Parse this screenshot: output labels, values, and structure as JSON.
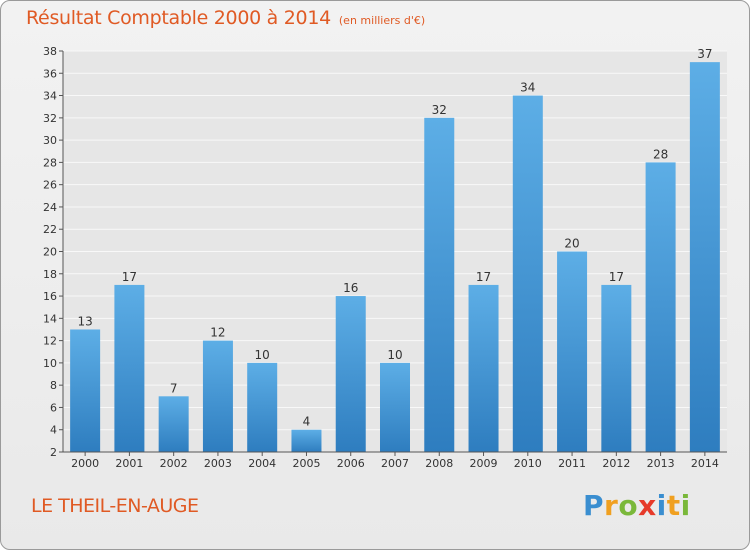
{
  "chart_data": {
    "type": "bar",
    "title": "Résultat Comptable 2000 à 2014",
    "subtitle": "(en milliers d'€)",
    "categories": [
      "2000",
      "2001",
      "2002",
      "2003",
      "2004",
      "2005",
      "2006",
      "2007",
      "2008",
      "2009",
      "2010",
      "2011",
      "2012",
      "2013",
      "2014"
    ],
    "values": [
      13,
      17,
      7,
      12,
      10,
      4,
      16,
      10,
      32,
      17,
      34,
      20,
      17,
      28,
      37
    ],
    "ylim": [
      2,
      38
    ],
    "yticks": [
      2,
      4,
      6,
      8,
      10,
      12,
      14,
      16,
      18,
      20,
      22,
      24,
      26,
      28,
      30,
      32,
      34,
      36,
      38
    ],
    "grid": true,
    "xlabel": "",
    "ylabel": ""
  },
  "commune": "LE THEIL-EN-AUGE",
  "logo": {
    "letters": [
      "P",
      "r",
      "o",
      "x",
      "i",
      "t",
      "i"
    ],
    "colors": [
      "#3a8ed0",
      "#f0a020",
      "#7ab83a",
      "#e63a2a",
      "#3a8ed0",
      "#f0a020",
      "#7ab83a"
    ]
  },
  "colors": {
    "bar_light": "#5daee6",
    "bar_dark": "#2e7dbf",
    "title": "#e05a24"
  }
}
